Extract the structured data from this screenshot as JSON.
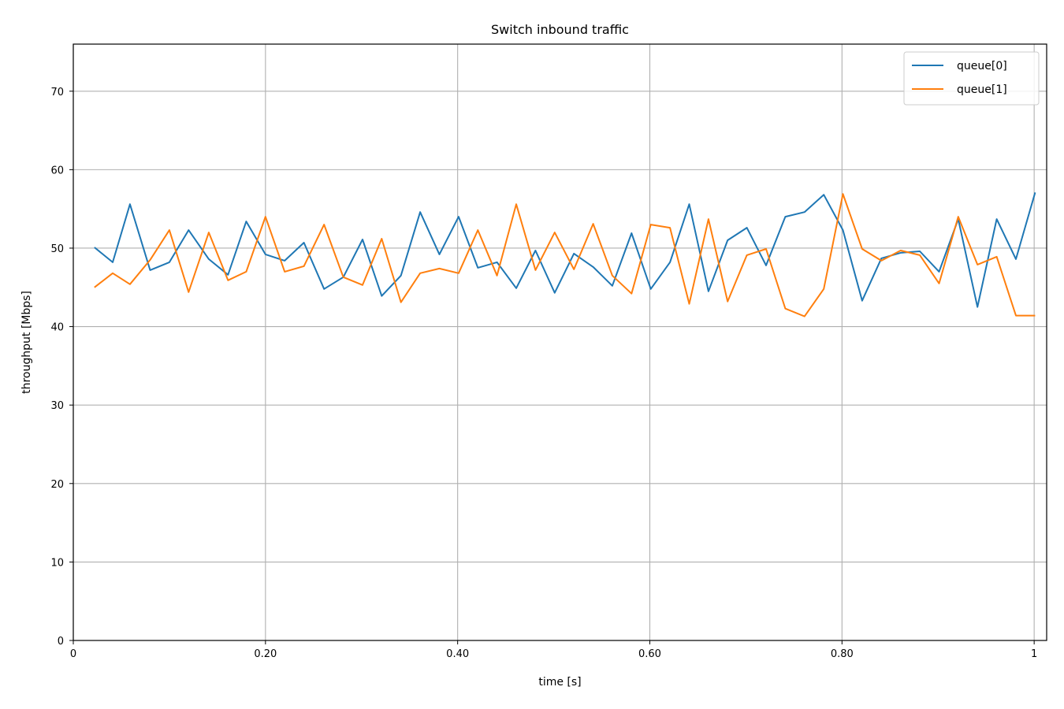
{
  "chart_data": {
    "type": "line",
    "title": "Switch inbound traffic",
    "xlabel": "time [s]",
    "ylabel": "throughput [Mbps]",
    "xlim": [
      0,
      1.013
    ],
    "ylim": [
      0,
      76
    ],
    "grid": true,
    "legend_position": "top-right",
    "x_ticks": [
      {
        "value": 0,
        "label": "0"
      },
      {
        "value": 0.2,
        "label": "0.20"
      },
      {
        "value": 0.4,
        "label": "0.40"
      },
      {
        "value": 0.6,
        "label": "0.60"
      },
      {
        "value": 0.8,
        "label": "0.80"
      },
      {
        "value": 1.0,
        "label": "1"
      }
    ],
    "y_ticks": [
      {
        "value": 0,
        "label": "0"
      },
      {
        "value": 10,
        "label": "10"
      },
      {
        "value": 20,
        "label": "20"
      },
      {
        "value": 30,
        "label": "30"
      },
      {
        "value": 40,
        "label": "40"
      },
      {
        "value": 50,
        "label": "50"
      },
      {
        "value": 60,
        "label": "60"
      },
      {
        "value": 70,
        "label": "70"
      }
    ],
    "x": [
      0.022,
      0.041,
      0.059,
      0.08,
      0.1,
      0.12,
      0.141,
      0.161,
      0.18,
      0.2,
      0.22,
      0.24,
      0.261,
      0.281,
      0.301,
      0.321,
      0.341,
      0.361,
      0.381,
      0.401,
      0.421,
      0.441,
      0.461,
      0.481,
      0.501,
      0.521,
      0.541,
      0.561,
      0.581,
      0.601,
      0.621,
      0.641,
      0.661,
      0.681,
      0.701,
      0.721,
      0.741,
      0.761,
      0.781,
      0.801,
      0.821,
      0.841,
      0.861,
      0.881,
      0.901,
      0.921,
      0.941,
      0.961,
      0.981,
      1.001
    ],
    "series": [
      {
        "name": "queue[0]",
        "color": "#1f77b4",
        "values": [
          50.1,
          48.2,
          55.6,
          47.2,
          48.2,
          52.3,
          48.6,
          46.6,
          53.4,
          49.2,
          48.4,
          50.7,
          44.8,
          46.3,
          51.1,
          43.9,
          46.5,
          54.6,
          49.2,
          54.0,
          47.5,
          48.2,
          44.9,
          49.7,
          44.3,
          49.3,
          47.6,
          45.2,
          51.9,
          44.8,
          48.2,
          55.6,
          44.5,
          51.0,
          52.6,
          47.8,
          54.0,
          54.6,
          56.8,
          52.3,
          43.3,
          48.7,
          49.4,
          49.6,
          47.0,
          53.7,
          42.5,
          53.7,
          48.6,
          57.1
        ]
      },
      {
        "name": "queue[1]",
        "color": "#ff7f0e",
        "values": [
          45.0,
          46.8,
          45.4,
          48.5,
          52.3,
          44.4,
          52.0,
          45.9,
          47.0,
          54.0,
          47.0,
          47.7,
          53.0,
          46.3,
          45.3,
          51.2,
          43.1,
          46.8,
          47.4,
          46.8,
          52.3,
          46.5,
          55.6,
          47.2,
          52.0,
          47.3,
          53.1,
          46.5,
          44.2,
          53.0,
          52.6,
          42.9,
          53.7,
          43.2,
          49.1,
          49.9,
          42.3,
          41.3,
          44.8,
          56.9,
          49.9,
          48.4,
          49.7,
          49.1,
          45.5,
          54.0,
          47.9,
          48.9,
          41.4,
          41.4
        ]
      }
    ]
  }
}
